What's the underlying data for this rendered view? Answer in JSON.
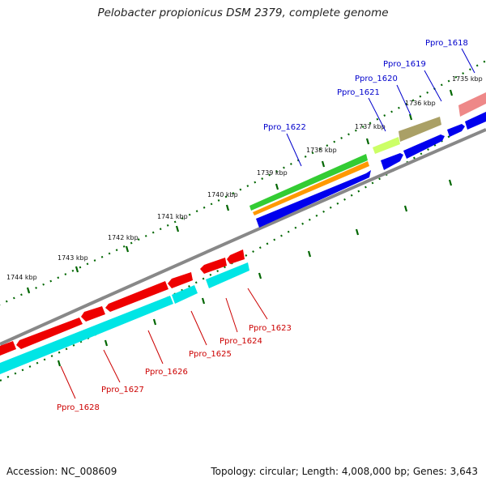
{
  "title": "Pelobacter propionicus DSM 2379, complete genome",
  "footer": {
    "accession_label": "Accession:",
    "accession": "NC_008609",
    "topology_label": "Topology:",
    "topology": "circular",
    "length_label": "Length:",
    "length": "4,008,000 bp",
    "genes_label": "Genes:",
    "genes": "3,643"
  },
  "scale_labels": [
    "1735 kbp",
    "1736 kbp",
    "1737 kbp",
    "1738 kbp",
    "1739 kbp",
    "1740 kbp",
    "1741 kbp",
    "1742 kbp",
    "1743 kbp",
    "1744 kbp"
  ],
  "upper_gene_labels": [
    "Ppro_1618",
    "Ppro_1619",
    "Ppro_1620",
    "Ppro_1621",
    "Ppro_1622"
  ],
  "lower_gene_labels": [
    "Ppro_1623",
    "Ppro_1624",
    "Ppro_1625",
    "Ppro_1626",
    "Ppro_1627",
    "Ppro_1628"
  ],
  "colors": {
    "forward_label": "#0000cc",
    "reverse_label": "#cc0000",
    "backbone": "#888888",
    "tick": "#006600",
    "forward_cds": "#0000ee",
    "reverse_cds": "#ee0000",
    "reverse_feature": "#00e5e5",
    "green_feature": "#33cc33",
    "orange_feature": "#ff9900",
    "olive_feature": "#aaa066",
    "lime_feature": "#ccff66",
    "pink_feature": "#ee8888"
  }
}
